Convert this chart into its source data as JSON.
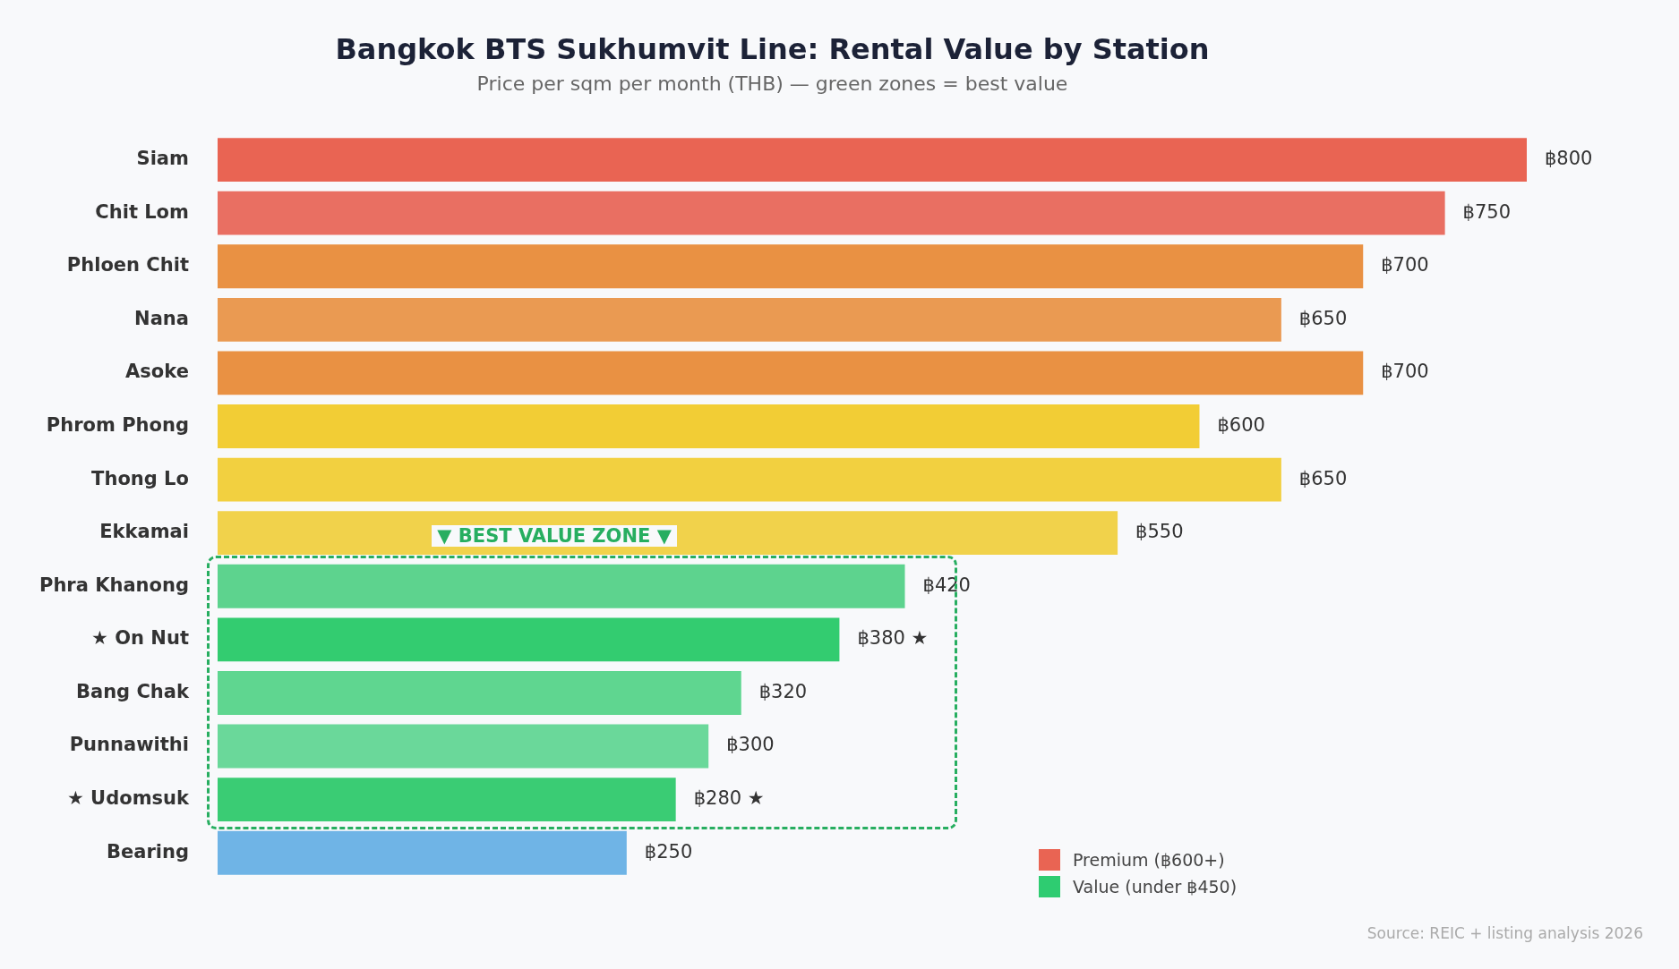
{
  "chart_data": {
    "type": "bar",
    "orientation": "horizontal",
    "stacked": true,
    "title": "Bangkok BTS Sukhumvit Line: Rental Value by Station",
    "subtitle": "Price per sqm per month (THB) — green zones = best value",
    "categories": [
      "Siam",
      "Chit Lom",
      "Phloen Chit",
      "Nana",
      "Asoke",
      "Phrom Phong",
      "Thong Lo",
      "Ekkamai",
      "Phra Khanong",
      "★ On Nut",
      "Bang Chak",
      "Punnawithi",
      "★ Udomsuk",
      "Bearing"
    ],
    "series": [
      {
        "name": "Premium (฿600+)",
        "color": "#e96453",
        "colors": [
          "#e96453",
          "#e96f62",
          null,
          null,
          null,
          null,
          null,
          null,
          null,
          null,
          null,
          null,
          null,
          null
        ],
        "values": [
          800,
          750,
          null,
          null,
          null,
          null,
          null,
          null,
          null,
          null,
          null,
          null,
          null,
          null
        ],
        "value_labels": [
          "฿800",
          "฿750",
          null,
          null,
          null,
          null,
          null,
          null,
          null,
          null,
          null,
          null,
          null,
          null
        ]
      },
      {
        "colors": [
          null,
          null,
          "#e99143",
          "#ea9a52",
          "#e99143",
          "#f2cd35",
          "#f2d040",
          "#f1d24b",
          null,
          null,
          null,
          null,
          null,
          "#6fb4e6"
        ],
        "values": [
          null,
          null,
          700,
          650,
          700,
          600,
          650,
          550,
          null,
          null,
          null,
          null,
          null,
          250
        ],
        "value_labels": [
          null,
          null,
          "฿700",
          "฿650",
          "฿700",
          "฿600",
          "฿650",
          "฿550",
          null,
          null,
          null,
          null,
          null,
          "฿250"
        ]
      },
      {
        "name": "Value (under ฿450)",
        "color": "#2ecc71",
        "colors": [
          null,
          null,
          null,
          null,
          null,
          null,
          null,
          null,
          "#5dd38e",
          "#33cc70",
          "#5fd690",
          "#6ad89a",
          "#3acc74",
          null
        ],
        "values": [
          null,
          null,
          null,
          null,
          null,
          null,
          null,
          null,
          420,
          380,
          320,
          300,
          280,
          null
        ],
        "value_labels": [
          null,
          null,
          null,
          null,
          null,
          null,
          null,
          null,
          "฿420",
          "฿380 ★",
          "฿320",
          "฿300",
          "฿280 ★",
          null
        ]
      }
    ],
    "legend": "bottom right",
    "annotations": [
      "▼ BEST VALUE ZONE ▼",
      "Source: REIC + listing analysis 2026"
    ]
  }
}
